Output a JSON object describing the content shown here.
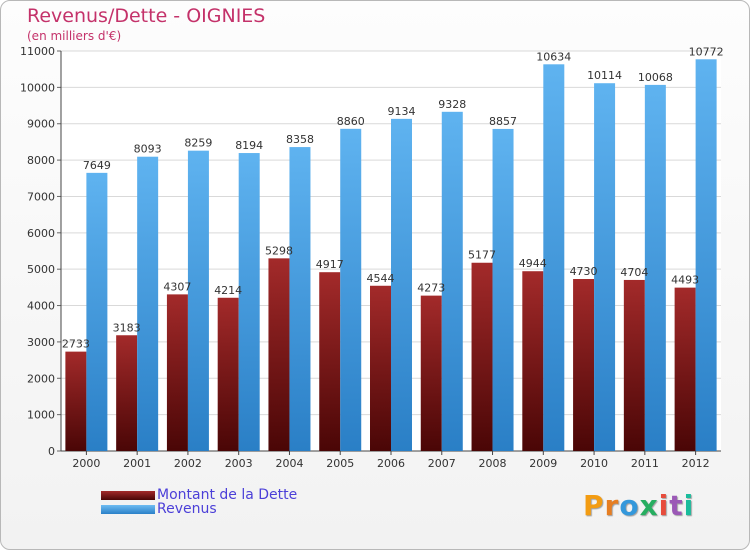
{
  "title": "Revenus/Dette - OIGNIES",
  "subtitle": "(en milliers d'€)",
  "logo_text": "Proxiti",
  "colors": {
    "dette": "#6b0f0f",
    "revenus": "#3d9be0",
    "title": "#c4326a",
    "legend_text": "#4b3fd8"
  },
  "chart_data": {
    "type": "bar",
    "title": "Revenus/Dette - OIGNIES",
    "subtitle": "(en milliers d'€)",
    "categories": [
      "2000",
      "2001",
      "2002",
      "2003",
      "2004",
      "2005",
      "2006",
      "2007",
      "2008",
      "2009",
      "2010",
      "2011",
      "2012"
    ],
    "series": [
      {
        "name": "Montant de la Dette",
        "values": [
          2733,
          3183,
          4307,
          4214,
          5298,
          4917,
          4544,
          4273,
          5177,
          4944,
          4730,
          4704,
          4493
        ]
      },
      {
        "name": "Revenus",
        "values": [
          7649,
          8093,
          8259,
          8194,
          8358,
          8860,
          9134,
          9328,
          8857,
          10634,
          10114,
          10068,
          10772
        ]
      }
    ],
    "y_ticks": [
      0,
      1000,
      2000,
      3000,
      4000,
      5000,
      6000,
      7000,
      8000,
      9000,
      10000,
      11000
    ],
    "ylim": [
      0,
      11000
    ],
    "grid": true,
    "legend": "bottom-left"
  }
}
